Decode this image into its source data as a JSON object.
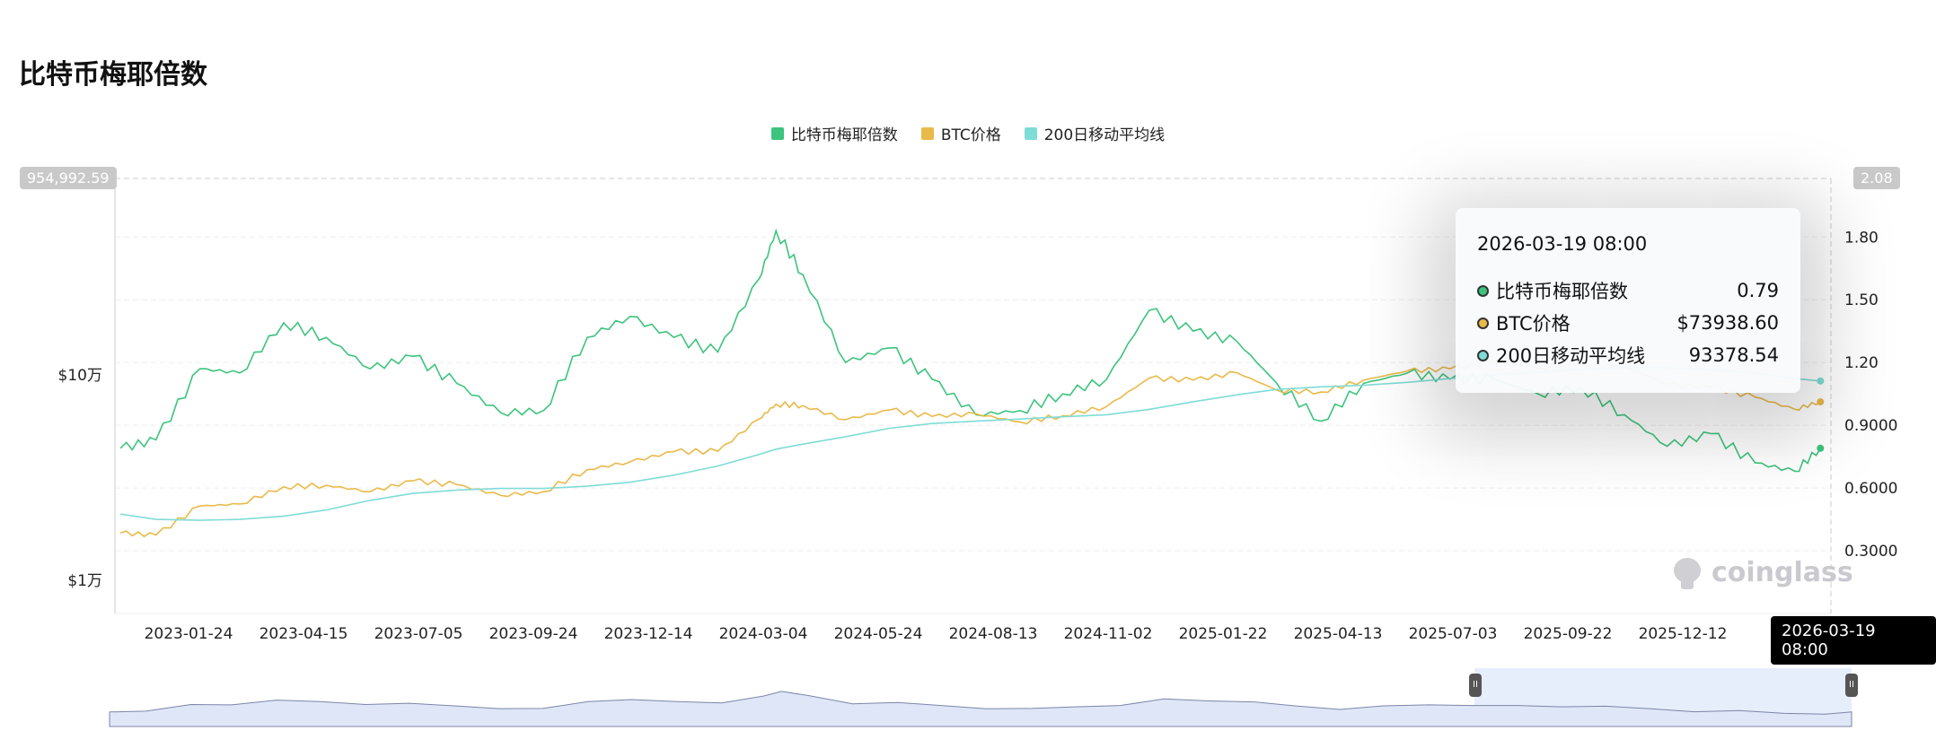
{
  "title": "比特币梅耶倍数",
  "legend": [
    {
      "label": "比特币梅耶倍数",
      "color": "#3cc47c"
    },
    {
      "label": "BTC价格",
      "color": "#e9b949"
    },
    {
      "label": "200日移动平均线",
      "color": "#7fdcd6"
    }
  ],
  "tooltip": {
    "time": "2026-03-19 08:00",
    "rows": [
      {
        "label": "比特币梅耶倍数",
        "value": "0.79",
        "color": "#3cc47c"
      },
      {
        "label": "BTC价格",
        "value": "$73938.60",
        "color": "#e9b949"
      },
      {
        "label": "200日移动平均线",
        "value": "93378.54",
        "color": "#7fdcd6"
      }
    ]
  },
  "watermark": "coinglass",
  "crosshair": {
    "x_label": "2026-03-19 08:00",
    "left_value": "954,992.59",
    "right_value": "2.08"
  },
  "chart_data": {
    "type": "line",
    "title": "比特币梅耶倍数",
    "x_ticks": [
      "2023-01-24",
      "2023-04-15",
      "2023-07-05",
      "2023-09-24",
      "2023-12-14",
      "2024-03-04",
      "2024-05-24",
      "2024-08-13",
      "2024-11-02",
      "2025-01-22",
      "2025-04-13",
      "2025-07-03",
      "2025-09-22",
      "2025-12-12"
    ],
    "left_axis": {
      "scale": "log",
      "range": [
        6900,
        954992.59
      ],
      "ticks": [
        {
          "value": 10000,
          "label": "$1万"
        },
        {
          "value": 100000,
          "label": "$10万"
        }
      ]
    },
    "right_axis": {
      "scale": "linear",
      "range": [
        0,
        2.08
      ],
      "ticks": [
        {
          "value": 0.3,
          "label": "0.3000"
        },
        {
          "value": 0.6,
          "label": "0.6000"
        },
        {
          "value": 0.9,
          "label": "0.9000"
        },
        {
          "value": 1.2,
          "label": "1.20"
        },
        {
          "value": 1.5,
          "label": "1.50"
        },
        {
          "value": 1.8,
          "label": "1.80"
        }
      ]
    },
    "x": [
      "2022-12-07",
      "2023-01-01",
      "2023-02-01",
      "2023-03-01",
      "2023-04-01",
      "2023-05-01",
      "2023-06-01",
      "2023-07-01",
      "2023-08-01",
      "2023-09-01",
      "2023-10-01",
      "2023-11-01",
      "2023-12-01",
      "2024-01-01",
      "2024-02-01",
      "2024-03-01",
      "2024-03-13",
      "2024-04-01",
      "2024-05-01",
      "2024-06-01",
      "2024-07-01",
      "2024-08-01",
      "2024-09-01",
      "2024-10-01",
      "2024-11-01",
      "2024-12-01",
      "2025-01-01",
      "2025-02-01",
      "2025-03-01",
      "2025-04-01",
      "2025-05-01",
      "2025-06-01",
      "2025-07-01",
      "2025-08-01",
      "2025-09-01",
      "2025-10-01",
      "2025-11-01",
      "2025-12-01",
      "2026-01-01",
      "2026-02-01",
      "2026-03-01",
      "2026-03-19"
    ],
    "series": [
      {
        "name": "比特币梅耶倍数",
        "axis": "right",
        "values": [
          0.79,
          0.83,
          1.17,
          1.15,
          1.39,
          1.32,
          1.17,
          1.23,
          1.1,
          0.96,
          0.97,
          1.32,
          1.42,
          1.32,
          1.25,
          1.6,
          1.83,
          1.62,
          1.2,
          1.27,
          1.12,
          0.95,
          0.97,
          1.05,
          1.12,
          1.45,
          1.35,
          1.3,
          1.1,
          0.92,
          1.1,
          1.15,
          1.12,
          1.12,
          1.05,
          1.08,
          0.95,
          0.8,
          0.86,
          0.72,
          0.68,
          0.79
        ]
      },
      {
        "name": "BTC价格",
        "axis": "left",
        "values": [
          17000,
          16600,
          23000,
          23500,
          28500,
          29000,
          27000,
          30500,
          29200,
          25900,
          27000,
          34600,
          37700,
          42300,
          42500,
          61000,
          72000,
          71000,
          60500,
          67500,
          62800,
          64600,
          58900,
          63300,
          70200,
          96400,
          94400,
          102400,
          84300,
          82500,
          94200,
          104600,
          107100,
          115700,
          108200,
          114000,
          110000,
          90000,
          87000,
          78000,
          68000,
          73938.6
        ]
      },
      {
        "name": "200日移动平均线",
        "axis": "left",
        "values": [
          21000,
          19800,
          19600,
          19800,
          20500,
          22000,
          24500,
          26500,
          27500,
          28000,
          28000,
          28700,
          30000,
          32500,
          36000,
          41000,
          43500,
          46000,
          50000,
          55000,
          58000,
          59500,
          61000,
          62500,
          64000,
          68000,
          74000,
          80000,
          85000,
          87500,
          89000,
          92000,
          96000,
          100000,
          103000,
          106500,
          108500,
          108500,
          106000,
          102000,
          96000,
          93378.54
        ]
      }
    ]
  }
}
